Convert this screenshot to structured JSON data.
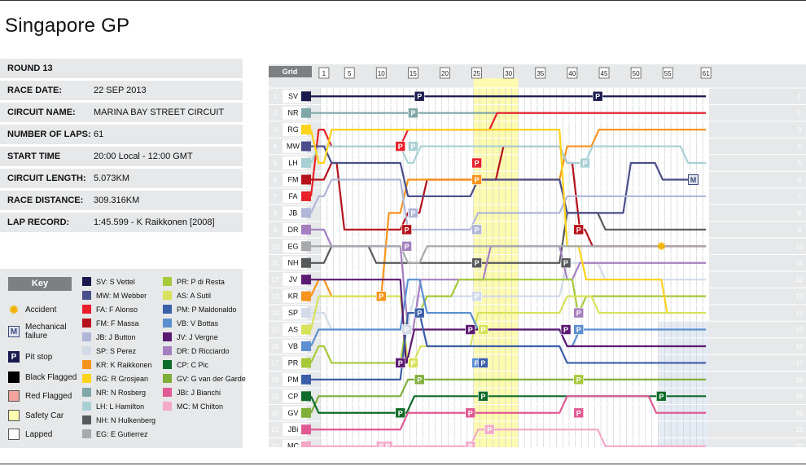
{
  "page": {
    "title": "Singapore GP"
  },
  "info": [
    {
      "label": "ROUND 13",
      "value": ""
    },
    {
      "label": "RACE DATE:",
      "value": "22 SEP 2013"
    },
    {
      "label": "CIRCUIT NAME:",
      "value": "MARINA BAY STREET CIRCUIT"
    },
    {
      "label": "NUMBER OF LAPS:",
      "value": "61"
    },
    {
      "label": "START TIME",
      "value": "20:00 Local - 12:00 GMT"
    },
    {
      "label": "CIRCUIT LENGTH:",
      "value": "5.073KM"
    },
    {
      "label": "RACE DISTANCE:",
      "value": "309.316KM"
    },
    {
      "label": "LAP RECORD:",
      "value": "1:45.599 - K Raikkonen [2008]"
    }
  ],
  "key": {
    "title": "Key",
    "symbols": [
      {
        "label": "Accident",
        "icon": "accident-star-icon"
      },
      {
        "label": "Mechanical failure",
        "icon": "mechanical-failure-icon",
        "glyph": "M"
      },
      {
        "label": "Pit stop",
        "icon": "pit-stop-icon",
        "glyph": "P"
      },
      {
        "label": "Black Flagged",
        "icon": "black-flag-icon"
      },
      {
        "label": "Red Flagged",
        "icon": "red-flag-icon"
      },
      {
        "label": "Safety Car",
        "icon": "safety-car-icon"
      },
      {
        "label": "Lapped",
        "icon": "lapped-icon"
      }
    ],
    "drivers_col1": [
      {
        "label": "SV: S Vettel",
        "color": "#1a1a4e"
      },
      {
        "label": "MW: M Webber",
        "color": "#4a4e8a"
      },
      {
        "label": "FA: F Alonso",
        "color": "#e8202a"
      },
      {
        "label": "FM: F Massa",
        "color": "#b5121b"
      },
      {
        "label": "JB: J Button",
        "color": "#b0b6d8"
      },
      {
        "label": "SP: S Perez",
        "color": "#d3dbe9"
      },
      {
        "label": "KR: K Raikkonen",
        "color": "#f7941d"
      },
      {
        "label": "RG: R Grosjean",
        "color": "#fdd21a"
      },
      {
        "label": "NR: N Rosberg",
        "color": "#7fa7a8"
      },
      {
        "label": "LH: L Hamilton",
        "color": "#a8d0d4"
      },
      {
        "label": "NH: N Hulkenberg",
        "color": "#58595b"
      },
      {
        "label": "EG: E Gutierrez",
        "color": "#a7a9ac"
      }
    ],
    "drivers_col2": [
      {
        "label": "PR: P di Resta",
        "color": "#a6c93a"
      },
      {
        "label": "AS: A Sutil",
        "color": "#d7e25a"
      },
      {
        "label": "PM: P Maldonaldo",
        "color": "#3b5ea8"
      },
      {
        "label": "VB: V Bottas",
        "color": "#5b8fcf"
      },
      {
        "label": "JV: J Vergne",
        "color": "#5b1a72"
      },
      {
        "label": "DR: D Ricciardo",
        "color": "#a57fc0"
      },
      {
        "label": "CP: C Pic",
        "color": "#0f6b2a"
      },
      {
        "label": "GV: G van der Garde",
        "color": "#7fae3b"
      },
      {
        "label": "JBi: J Bianchi",
        "color": "#e05a93"
      },
      {
        "label": "MC: M Chilton",
        "color": "#f3a9c8"
      }
    ]
  },
  "chart_data": {
    "type": "line",
    "title": "Singapore GP",
    "grid_label": "Grid",
    "laps": 61,
    "lap_ticks": [
      1,
      5,
      10,
      15,
      20,
      25,
      30,
      35,
      40,
      45,
      50,
      55,
      61
    ],
    "positions": [
      1,
      2,
      3,
      4,
      5,
      6,
      7,
      8,
      9,
      10,
      11,
      12,
      13,
      14,
      15,
      16,
      17,
      18,
      19,
      20,
      21,
      22
    ],
    "grid": [
      "SV",
      "NR",
      "RG",
      "MW",
      "LH",
      "FM",
      "FA",
      "JB",
      "DR",
      "EG",
      "NH",
      "JV",
      "KR",
      "SP",
      "AS",
      "VB",
      "PR",
      "PM",
      "CP",
      "GV",
      "JBi",
      "MC"
    ],
    "safety_car_laps": [
      25,
      31
    ],
    "lapped_from": 54,
    "driver_colors": {
      "SV": "#1a1a4e",
      "NR": "#7fa7a8",
      "RG": "#fdd21a",
      "MW": "#4a4e8a",
      "LH": "#a8d0d4",
      "FM": "#b5121b",
      "FA": "#e8202a",
      "JB": "#b0b6d8",
      "DR": "#a57fc0",
      "EG": "#a7a9ac",
      "NH": "#58595b",
      "JV": "#5b1a72",
      "KR": "#f7941d",
      "SP": "#d3dbe9",
      "AS": "#d7e25a",
      "VB": "#5b8fcf",
      "PR": "#a6c93a",
      "PM": "#3b5ea8",
      "CP": "#0f6b2a",
      "GV": "#7fae3b",
      "JBi": "#e05a93",
      "MC": "#f3a9c8"
    },
    "series": [
      {
        "name": "SV",
        "positions": [
          [
            0,
            1
          ],
          [
            61,
            1
          ]
        ],
        "pits": [
          [
            16,
            1
          ],
          [
            44,
            1
          ]
        ]
      },
      {
        "name": "NR",
        "positions": [
          [
            0,
            2
          ],
          [
            14,
            2
          ],
          [
            15,
            2
          ],
          [
            61,
            2
          ]
        ],
        "pits": [
          [
            15,
            2
          ]
        ]
      },
      {
        "name": "FA",
        "positions": [
          [
            0,
            7
          ],
          [
            1,
            3
          ],
          [
            13,
            4
          ],
          [
            16,
            3
          ],
          [
            24,
            3
          ],
          [
            27,
            3
          ],
          [
            38,
            2
          ],
          [
            39,
            2
          ],
          [
            61,
            2
          ]
        ],
        "pits": [
          [
            13,
            4
          ],
          [
            25,
            5
          ]
        ]
      },
      {
        "name": "FM",
        "positions": [
          [
            0,
            6
          ],
          [
            1,
            6
          ],
          [
            3,
            5
          ],
          [
            13,
            9
          ],
          [
            16,
            8
          ],
          [
            28,
            6
          ],
          [
            38,
            4
          ],
          [
            40,
            5
          ],
          [
            42,
            9
          ],
          [
            61,
            10
          ]
        ],
        "pits": [
          [
            14,
            9
          ],
          [
            41,
            9
          ]
        ]
      },
      {
        "name": "KR",
        "positions": [
          [
            0,
            13
          ],
          [
            1,
            12
          ],
          [
            10,
            13
          ],
          [
            13,
            8
          ],
          [
            24,
            6
          ],
          [
            38,
            6
          ],
          [
            43,
            4
          ],
          [
            54,
            3
          ],
          [
            61,
            3
          ]
        ],
        "pits": [
          [
            10,
            13
          ],
          [
            25,
            6
          ]
        ]
      },
      {
        "name": "NH",
        "positions": [
          [
            0,
            11
          ],
          [
            1,
            11
          ],
          [
            8,
            10
          ],
          [
            13,
            11
          ],
          [
            24,
            11
          ],
          [
            38,
            11
          ],
          [
            44,
            8
          ],
          [
            52,
            9
          ],
          [
            61,
            9
          ]
        ],
        "pits": [
          [
            25,
            11
          ],
          [
            39,
            11
          ]
        ]
      },
      {
        "name": "LH",
        "positions": [
          [
            0,
            5
          ],
          [
            1,
            4
          ],
          [
            13,
            4
          ],
          [
            15,
            5
          ],
          [
            24,
            4
          ],
          [
            38,
            4
          ],
          [
            42,
            5
          ],
          [
            57,
            4
          ],
          [
            61,
            5
          ]
        ],
        "pits": [
          [
            15,
            4
          ],
          [
            42,
            5
          ]
        ]
      },
      {
        "name": "MW",
        "positions": [
          [
            0,
            4
          ],
          [
            1,
            4
          ],
          [
            13,
            5
          ],
          [
            15,
            7
          ],
          [
            24,
            7
          ],
          [
            38,
            6
          ],
          [
            48,
            8
          ],
          [
            53,
            5
          ],
          [
            59,
            6
          ]
        ],
        "failures": [
          [
            59,
            6
          ]
        ]
      },
      {
        "name": "JB",
        "positions": [
          [
            0,
            8
          ],
          [
            1,
            7
          ],
          [
            13,
            6
          ],
          [
            15,
            9
          ],
          [
            24,
            9
          ],
          [
            38,
            8
          ],
          [
            43,
            7
          ],
          [
            53,
            7
          ],
          [
            61,
            7
          ]
        ],
        "pits": [
          [
            15,
            8
          ],
          [
            25,
            9
          ]
        ]
      },
      {
        "name": "SP",
        "positions": [
          [
            0,
            14
          ],
          [
            1,
            14
          ],
          [
            8,
            15
          ],
          [
            14,
            15
          ],
          [
            26,
            13
          ],
          [
            38,
            13
          ],
          [
            44,
            11
          ],
          [
            56,
            12
          ],
          [
            61,
            12
          ]
        ],
        "pits": [
          [
            14,
            15
          ],
          [
            25,
            13
          ]
        ]
      },
      {
        "name": "DR",
        "positions": [
          [
            0,
            9
          ],
          [
            1,
            9
          ],
          [
            13,
            10
          ],
          [
            15,
            15
          ],
          [
            26,
            12
          ],
          [
            38,
            10
          ],
          [
            40,
            12
          ],
          [
            53,
            11
          ],
          [
            61,
            11
          ]
        ],
        "pits": [
          [
            14,
            10
          ],
          [
            41,
            14
          ]
        ]
      },
      {
        "name": "PR",
        "positions": [
          [
            0,
            17
          ],
          [
            1,
            16
          ],
          [
            13,
            17
          ],
          [
            16,
            14
          ],
          [
            21,
            13
          ],
          [
            40,
            12
          ],
          [
            41,
            14
          ],
          [
            52,
            13
          ],
          [
            61,
            13
          ]
        ],
        "pits": [
          [
            15,
            17
          ],
          [
            41,
            18
          ]
        ]
      },
      {
        "name": "RG",
        "positions": [
          [
            0,
            3
          ],
          [
            1,
            5
          ],
          [
            15,
            3
          ],
          [
            20,
            3
          ],
          [
            24,
            3
          ],
          [
            38,
            3
          ],
          [
            41,
            10
          ],
          [
            54,
            12
          ],
          [
            55,
            14
          ]
        ]
      },
      {
        "name": "AS",
        "positions": [
          [
            0,
            15
          ],
          [
            1,
            13
          ],
          [
            13,
            13
          ],
          [
            15,
            17
          ],
          [
            24,
            16
          ],
          [
            26,
            14
          ],
          [
            38,
            14
          ],
          [
            43,
            13
          ],
          [
            61,
            14
          ]
        ],
        "pits": [
          [
            15,
            17
          ],
          [
            26,
            15
          ]
        ]
      },
      {
        "name": "VB",
        "positions": [
          [
            0,
            16
          ],
          [
            1,
            15
          ],
          [
            13,
            15
          ],
          [
            16,
            12
          ],
          [
            24,
            14
          ],
          [
            38,
            15
          ],
          [
            40,
            16
          ],
          [
            52,
            15
          ],
          [
            61,
            15
          ]
        ],
        "pits": [
          [
            25,
            17
          ],
          [
            41,
            15
          ]
        ]
      },
      {
        "name": "JV",
        "positions": [
          [
            0,
            12
          ],
          [
            1,
            12
          ],
          [
            13,
            12
          ],
          [
            14,
            17
          ],
          [
            23,
            15
          ],
          [
            38,
            15
          ],
          [
            40,
            16
          ],
          [
            52,
            16
          ],
          [
            61,
            16
          ]
        ],
        "pits": [
          [
            13,
            17
          ],
          [
            24,
            15
          ],
          [
            39,
            15
          ]
        ]
      },
      {
        "name": "PM",
        "positions": [
          [
            0,
            18
          ],
          [
            1,
            18
          ],
          [
            13,
            18
          ],
          [
            16,
            14
          ],
          [
            24,
            16
          ],
          [
            38,
            16
          ],
          [
            42,
            17
          ],
          [
            52,
            17
          ],
          [
            61,
            17
          ]
        ],
        "pits": [
          [
            16,
            14
          ],
          [
            26,
            17
          ]
        ]
      },
      {
        "name": "GV",
        "positions": [
          [
            0,
            20
          ],
          [
            1,
            19
          ],
          [
            13,
            19
          ],
          [
            16,
            18
          ],
          [
            24,
            18
          ],
          [
            38,
            18
          ],
          [
            50,
            18
          ],
          [
            52,
            18
          ],
          [
            61,
            18
          ]
        ],
        "pits": [
          [
            16,
            18
          ]
        ]
      },
      {
        "name": "EG",
        "positions": [
          [
            0,
            10
          ],
          [
            1,
            10
          ],
          [
            13,
            10
          ],
          [
            16,
            11
          ],
          [
            24,
            10
          ],
          [
            38,
            10
          ],
          [
            52,
            10
          ],
          [
            55,
            10
          ],
          [
            61,
            10
          ]
        ],
        "accidents": [
          [
            54,
            10
          ]
        ]
      },
      {
        "name": "CP",
        "positions": [
          [
            0,
            19
          ],
          [
            1,
            20
          ],
          [
            13,
            20
          ],
          [
            14,
            20
          ],
          [
            24,
            19
          ],
          [
            38,
            19
          ],
          [
            52,
            19
          ],
          [
            54,
            19
          ],
          [
            61,
            19
          ]
        ],
        "pits": [
          [
            13,
            20
          ],
          [
            26,
            19
          ],
          [
            54,
            19
          ]
        ]
      },
      {
        "name": "JBi",
        "positions": [
          [
            0,
            21
          ],
          [
            1,
            21
          ],
          [
            13,
            21
          ],
          [
            20,
            20
          ],
          [
            24,
            20
          ],
          [
            38,
            20
          ],
          [
            42,
            19
          ],
          [
            52,
            19
          ],
          [
            61,
            20
          ]
        ],
        "pits": [
          [
            24,
            20
          ],
          [
            41,
            20
          ]
        ]
      },
      {
        "name": "MC",
        "positions": [
          [
            0,
            22
          ],
          [
            1,
            22
          ],
          [
            13,
            22
          ],
          [
            24,
            22
          ],
          [
            26,
            21
          ],
          [
            38,
            21
          ],
          [
            44,
            21
          ],
          [
            61,
            22
          ]
        ],
        "pits": [
          [
            10,
            22
          ],
          [
            11,
            22
          ],
          [
            24,
            22
          ],
          [
            27,
            21
          ]
        ]
      }
    ]
  }
}
